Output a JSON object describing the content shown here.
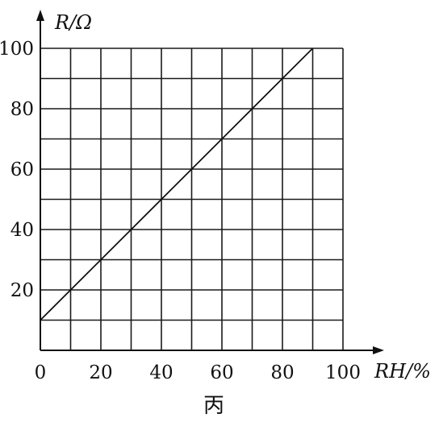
{
  "chart_data": {
    "type": "line",
    "xlabel": "RH/%",
    "ylabel": "R/Ω",
    "caption": "丙",
    "xlim": [
      0,
      100
    ],
    "ylim": [
      0,
      100
    ],
    "x_ticks": [
      "0",
      "20",
      "40",
      "60",
      "80",
      "100"
    ],
    "y_ticks": [
      "20",
      "40",
      "60",
      "80",
      "100"
    ],
    "x_grid_step": 10,
    "y_grid_step": 10,
    "grid": true,
    "series": [
      {
        "x": [
          0,
          90
        ],
        "y": [
          10,
          100
        ]
      }
    ]
  }
}
